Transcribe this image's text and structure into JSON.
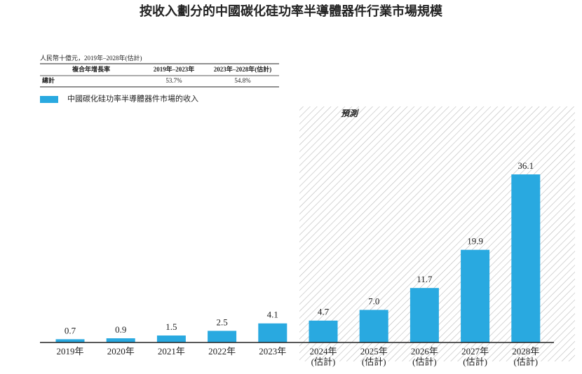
{
  "chart_data": {
    "type": "bar",
    "title": "按收入劃分的中國碳化硅功率半導體器件行業市場規模",
    "unit_note": "人民幣十億元，2019年–2028年(估計)",
    "cagr_table": {
      "header": [
        "複合年增長率",
        "2019年–2023年",
        "2023年–2028年(估計)"
      ],
      "rows": [
        [
          "總計",
          "53.7%",
          "54.8%"
        ]
      ]
    },
    "forecast_label": "預測",
    "categories": [
      "2019年",
      "2020年",
      "2021年",
      "2022年",
      "2023年",
      "2024年\n(估計)",
      "2025年\n(估計)",
      "2026年\n(估計)",
      "2027年\n(估計)",
      "2028年\n(估計)"
    ],
    "series": [
      {
        "name": "中國碳化硅功率半導體器件市場的收入",
        "color": "#29a9e0",
        "values": [
          0.7,
          0.9,
          1.5,
          2.5,
          4.1,
          4.7,
          7.0,
          11.7,
          19.9,
          36.1
        ],
        "value_labels": [
          "0.7",
          "0.9",
          "1.5",
          "2.5",
          "4.1",
          "4.7",
          "7.0",
          "11.7",
          "19.9",
          "36.1"
        ]
      }
    ]
  }
}
